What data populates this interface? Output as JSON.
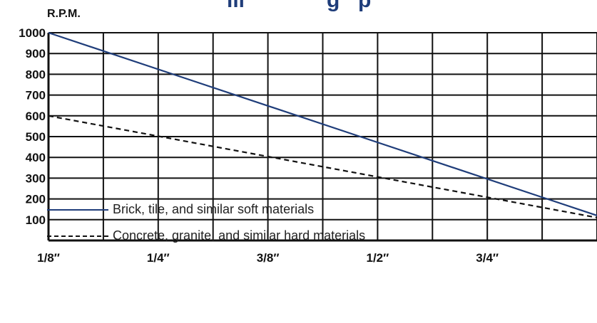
{
  "chart_data": {
    "type": "line",
    "title": "",
    "ylabel": "R.P.M.",
    "xlabel": "",
    "x_ticks": [
      "1/8″",
      "1/4″",
      "3/8″",
      "1/2″",
      "3/4″"
    ],
    "y_ticks": [
      "1000",
      "900",
      "800",
      "700",
      "600",
      "500",
      "400",
      "300",
      "200",
      "100"
    ],
    "ylim": [
      0,
      1000
    ],
    "xlim": [
      0,
      10
    ],
    "grid": true,
    "series": [
      {
        "name": "Brick, tile, and similar soft materials",
        "color": "#1f3d7a",
        "style": "solid",
        "x": [
          0,
          10
        ],
        "y": [
          1000,
          120
        ]
      },
      {
        "name": "Concrete, granite, and similar hard materials",
        "color": "#111111",
        "style": "dashed",
        "x": [
          0,
          10
        ],
        "y": [
          600,
          110
        ]
      }
    ]
  },
  "legend": {
    "solid_label": "Brick, tile, and similar soft materials",
    "dashed_label": "Concrete, granite, and similar hard materials"
  }
}
